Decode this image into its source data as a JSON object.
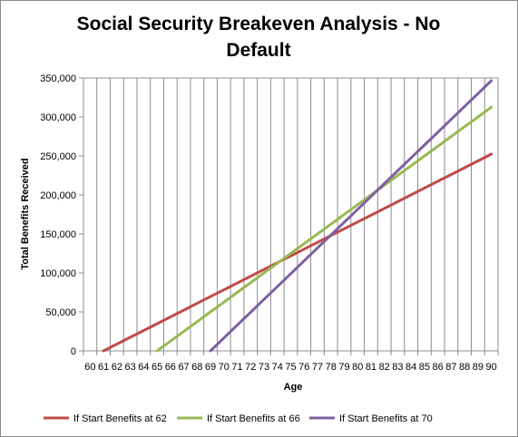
{
  "chart_data": {
    "type": "line",
    "title": "Social Security Breakeven Analysis - No Default",
    "xlabel": "Age",
    "ylabel": "Total Benefits Received",
    "x": [
      60,
      61,
      62,
      63,
      64,
      65,
      66,
      67,
      68,
      69,
      70,
      71,
      72,
      73,
      74,
      75,
      76,
      77,
      78,
      79,
      80,
      81,
      82,
      83,
      84,
      85,
      86,
      87,
      88,
      89,
      90
    ],
    "y_ticks": [
      "0",
      "50,000",
      "100,000",
      "150,000",
      "200,000",
      "250,000",
      "300,000",
      "350,000"
    ],
    "ylim": [
      0,
      350000
    ],
    "grid": "vertical",
    "legend_position": "bottom",
    "series": [
      {
        "name": "If Start Benefits at 62",
        "color": "#be4b48",
        "values": [
          null,
          0,
          8700,
          17400,
          26100,
          34800,
          43500,
          52200,
          60900,
          69600,
          78300,
          87000,
          95700,
          104400,
          113100,
          121800,
          130500,
          139200,
          147900,
          156600,
          165300,
          174000,
          182700,
          191400,
          200100,
          208800,
          217500,
          226200,
          234900,
          243600,
          252300
        ]
      },
      {
        "name": "If Start Benefits at 66",
        "color": "#98b954",
        "values": [
          null,
          null,
          null,
          null,
          null,
          0,
          12500,
          25000,
          37500,
          50000,
          62500,
          75000,
          87500,
          100000,
          112500,
          125000,
          137500,
          150000,
          162500,
          175000,
          187500,
          200000,
          212500,
          225000,
          237500,
          250000,
          262500,
          275000,
          287500,
          300000,
          312500
        ]
      },
      {
        "name": "If Start Benefits at 70",
        "color": "#7d60a0",
        "values": [
          null,
          null,
          null,
          null,
          null,
          null,
          null,
          null,
          null,
          0,
          16500,
          33000,
          49500,
          66000,
          82500,
          99000,
          115500,
          132000,
          148500,
          165000,
          181500,
          198000,
          214500,
          231000,
          247500,
          264000,
          280500,
          297000,
          313500,
          330000,
          346500
        ]
      }
    ]
  }
}
